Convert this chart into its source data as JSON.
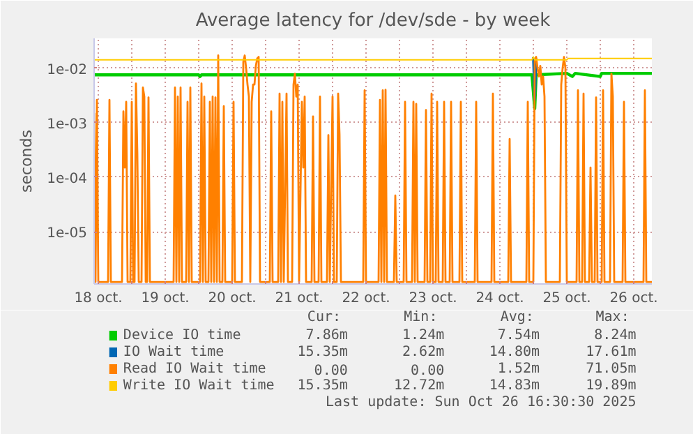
{
  "chart_data": {
    "type": "line",
    "title": "Average latency for /dev/sde - by week",
    "ylabel": "seconds",
    "log": "y",
    "grid": true,
    "legend": "bottom",
    "xlim": [
      "2025-10-18T10:30",
      "2025-10-26T18:30"
    ],
    "ylim": [
      1.1e-06,
      0.035
    ],
    "xticks": [
      {
        "value": "2025-10-18T12:00",
        "label": "18 oct."
      },
      {
        "value": "2025-10-19T00:00",
        "label": null
      },
      {
        "value": "2025-10-19T12:00",
        "label": "19 oct."
      },
      {
        "value": "2025-10-20T00:00",
        "label": null
      },
      {
        "value": "2025-10-20T12:00",
        "label": "20 oct."
      },
      {
        "value": "2025-10-21T00:00",
        "label": null
      },
      {
        "value": "2025-10-21T12:00",
        "label": "21 oct."
      },
      {
        "value": "2025-10-22T00:00",
        "label": null
      },
      {
        "value": "2025-10-22T12:00",
        "label": "22 oct."
      },
      {
        "value": "2025-10-23T00:00",
        "label": null
      },
      {
        "value": "2025-10-23T12:00",
        "label": "23 oct."
      },
      {
        "value": "2025-10-24T00:00",
        "label": null
      },
      {
        "value": "2025-10-24T12:00",
        "label": "24 oct."
      },
      {
        "value": "2025-10-25T00:00",
        "label": null
      },
      {
        "value": "2025-10-25T12:00",
        "label": "25 oct."
      },
      {
        "value": "2025-10-26T00:00",
        "label": null
      },
      {
        "value": "2025-10-26T12:00",
        "label": "26 oct."
      }
    ],
    "yticks": [
      {
        "value": 1e-05,
        "label": "1e-05"
      },
      {
        "value": 0.0001,
        "label": "1e-04"
      },
      {
        "value": 0.001,
        "label": "1e-03"
      },
      {
        "value": 0.01,
        "label": "1e-02"
      }
    ],
    "series": [
      {
        "name": "Device IO time",
        "color": "#00cc00",
        "x": [
          "2025-10-18T10:30",
          "2025-10-20T00:00",
          "2025-10-20T00:30",
          "2025-10-20T01:00",
          "2025-10-24T23:30",
          "2025-10-25T00:30",
          "2025-10-25T01:00",
          "2025-10-25T12:00",
          "2025-10-25T14:00",
          "2025-10-25T15:00",
          "2025-10-26T00:00",
          "2025-10-26T00:30",
          "2025-10-26T18:30"
        ],
        "values": [
          0.0075,
          0.0075,
          0.007,
          0.0075,
          0.0075,
          0.0018,
          0.0075,
          0.008,
          0.007,
          0.008,
          0.007,
          0.008,
          0.008
        ]
      },
      {
        "name": "IO Wait time",
        "color": "#0066b3",
        "x": [
          "2025-10-24T23:30",
          "2025-10-25T00:00",
          "2025-10-25T00:30",
          "2025-10-25T01:00"
        ],
        "values": [
          0.015,
          0.015,
          0.0026,
          0.015
        ]
      },
      {
        "name": "Read IO Wait time",
        "color": "#ff8000",
        "x": [
          "2025-10-18T10:30",
          "2025-10-18T11:00",
          "2025-10-18T11:30",
          "2025-10-18T12:00",
          "2025-10-18T15:30",
          "2025-10-18T16:00",
          "2025-10-18T16:30",
          "2025-10-18T20:30",
          "2025-10-18T21:00",
          "2025-10-18T21:30",
          "2025-10-18T22:00",
          "2025-10-18T22:30",
          "2025-10-18T23:30",
          "2025-10-19T00:00",
          "2025-10-19T00:30",
          "2025-10-19T01:00",
          "2025-10-19T01:30",
          "2025-10-19T02:00",
          "2025-10-19T02:30",
          "2025-10-19T03:30",
          "2025-10-19T04:00",
          "2025-10-19T04:30",
          "2025-10-19T05:00",
          "2025-10-19T05:30",
          "2025-10-19T06:00",
          "2025-10-19T06:30",
          "2025-10-19T15:00",
          "2025-10-19T15:30",
          "2025-10-19T16:00",
          "2025-10-19T16:30",
          "2025-10-19T17:00",
          "2025-10-19T17:30",
          "2025-10-19T18:00",
          "2025-10-19T19:30",
          "2025-10-19T20:00",
          "2025-10-19T20:30",
          "2025-10-19T21:00",
          "2025-10-19T21:30",
          "2025-10-20T00:30",
          "2025-10-20T01:00",
          "2025-10-20T01:30",
          "2025-10-20T02:00",
          "2025-10-20T02:30",
          "2025-10-20T03:30",
          "2025-10-20T04:00",
          "2025-10-20T04:30",
          "2025-10-20T05:00",
          "2025-10-20T05:30",
          "2025-10-20T06:00",
          "2025-10-20T06:30",
          "2025-10-20T07:00",
          "2025-10-20T07:30",
          "2025-10-20T08:30",
          "2025-10-20T09:00",
          "2025-10-20T09:30",
          "2025-10-20T12:00",
          "2025-10-20T12:30",
          "2025-10-20T13:00",
          "2025-10-20T15:30",
          "2025-10-20T16:00",
          "2025-10-20T16:30",
          "2025-10-20T17:00",
          "2025-10-20T17:30",
          "2025-10-20T18:00",
          "2025-10-20T18:30",
          "2025-10-20T19:00",
          "2025-10-20T19:30",
          "2025-10-20T20:00",
          "2025-10-20T20:30",
          "2025-10-20T21:00",
          "2025-10-20T21:30",
          "2025-10-20T22:00",
          "2025-10-21T01:30",
          "2025-10-21T02:00",
          "2025-10-21T02:30",
          "2025-10-21T04:30",
          "2025-10-21T05:00",
          "2025-10-21T05:30",
          "2025-10-21T06:00",
          "2025-10-21T06:30",
          "2025-10-21T07:30",
          "2025-10-21T08:00",
          "2025-10-21T09:30",
          "2025-10-21T10:00",
          "2025-10-21T10:30",
          "2025-10-21T11:00",
          "2025-10-21T11:30",
          "2025-10-21T12:00",
          "2025-10-21T13:00",
          "2025-10-21T13:30",
          "2025-10-21T14:00",
          "2025-10-21T14:30",
          "2025-10-21T16:30",
          "2025-10-21T17:00",
          "2025-10-21T17:30",
          "2025-10-21T19:00",
          "2025-10-21T19:30",
          "2025-10-21T20:00",
          "2025-10-21T22:00",
          "2025-10-21T22:30",
          "2025-10-21T23:00",
          "2025-10-22T00:00",
          "2025-10-22T00:30",
          "2025-10-22T01:30",
          "2025-10-22T02:00",
          "2025-10-22T02:30",
          "2025-10-22T03:00",
          "2025-10-22T11:00",
          "2025-10-22T11:30",
          "2025-10-22T12:00",
          "2025-10-22T16:30",
          "2025-10-22T17:00",
          "2025-10-22T17:30",
          "2025-10-22T18:00",
          "2025-10-22T18:30",
          "2025-10-22T19:00",
          "2025-10-22T19:30",
          "2025-10-22T22:00",
          "2025-10-22T22:30",
          "2025-10-22T23:00",
          "2025-10-23T01:30",
          "2025-10-23T02:00",
          "2025-10-23T02:30",
          "2025-10-23T04:30",
          "2025-10-23T05:00",
          "2025-10-23T05:30",
          "2025-10-23T06:00",
          "2025-10-23T06:30",
          "2025-10-23T09:00",
          "2025-10-23T09:30",
          "2025-10-23T10:00",
          "2025-10-23T11:00",
          "2025-10-23T11:30",
          "2025-10-23T12:00",
          "2025-10-23T13:00",
          "2025-10-23T13:30",
          "2025-10-23T14:00",
          "2025-10-23T15:30",
          "2025-10-23T16:00",
          "2025-10-23T16:30",
          "2025-10-23T18:00",
          "2025-10-23T18:30",
          "2025-10-23T19:00",
          "2025-10-23T21:30",
          "2025-10-23T22:00",
          "2025-10-23T22:30",
          "2025-10-24T03:00",
          "2025-10-24T03:30",
          "2025-10-24T04:00",
          "2025-10-24T09:00",
          "2025-10-24T09:30",
          "2025-10-24T10:00",
          "2025-10-24T15:00",
          "2025-10-24T15:30",
          "2025-10-24T16:00",
          "2025-10-24T21:30",
          "2025-10-24T22:00",
          "2025-10-24T22:30",
          "2025-10-25T00:00",
          "2025-10-25T00:30",
          "2025-10-25T01:00",
          "2025-10-25T01:30",
          "2025-10-25T02:00",
          "2025-10-25T02:30",
          "2025-10-25T03:00",
          "2025-10-25T03:30",
          "2025-10-25T04:00",
          "2025-10-25T04:30",
          "2025-10-25T09:30",
          "2025-10-25T10:00",
          "2025-10-25T10:30",
          "2025-10-25T11:00",
          "2025-10-25T11:30",
          "2025-10-25T12:00",
          "2025-10-25T15:30",
          "2025-10-25T16:00",
          "2025-10-25T16:30",
          "2025-10-25T17:30",
          "2025-10-25T18:00",
          "2025-10-25T18:30",
          "2025-10-25T20:00",
          "2025-10-25T20:30",
          "2025-10-25T21:00",
          "2025-10-25T22:00",
          "2025-10-25T22:30",
          "2025-10-25T23:00",
          "2025-10-26T00:30",
          "2025-10-26T01:00",
          "2025-10-26T01:30",
          "2025-10-26T03:30",
          "2025-10-26T04:00",
          "2025-10-26T04:30",
          "2025-10-26T05:00",
          "2025-10-26T08:00",
          "2025-10-26T08:30",
          "2025-10-26T09:00",
          "2025-10-26T15:30",
          "2025-10-26T16:00",
          "2025-10-26T16:30",
          "2025-10-26T18:30"
        ],
        "values": [
          0.0015,
          1.2e-06,
          0.0026,
          1.2e-06,
          1.2e-06,
          0.0026,
          1.2e-06,
          1.2e-06,
          0.0016,
          0.00015,
          0.0024,
          1.2e-06,
          1.2e-06,
          0.0024,
          1.2e-06,
          1.2e-06,
          0.0052,
          0.00027,
          1.2e-06,
          1.2e-06,
          0.0044,
          0.003,
          1.2e-06,
          1.2e-06,
          0.0029,
          1.2e-06,
          1.2e-06,
          0.0044,
          1.2e-06,
          0.003,
          1.2e-06,
          0.0044,
          1.2e-06,
          1.2e-06,
          0.0024,
          1.2e-06,
          0.0044,
          1.2e-06,
          1.2e-06,
          0.0052,
          1.2e-06,
          0.003,
          1.2e-06,
          1.2e-06,
          0.0024,
          1.2e-06,
          0.003,
          1.2e-06,
          0.0029,
          1.2e-06,
          0.017,
          1.2e-06,
          1.2e-06,
          0.002,
          1.2e-06,
          1.2e-06,
          0.0024,
          1.2e-06,
          1.2e-06,
          0.013,
          0.017,
          0.01,
          0.005,
          0.003,
          1.2e-06,
          0.0024,
          0.005,
          0.005,
          0.011,
          0.015,
          0.016,
          1.2e-06,
          1.2e-06,
          0.0016,
          1.2e-06,
          1.2e-06,
          0.0034,
          1.2e-06,
          0.0024,
          1.2e-06,
          0.0034,
          1.2e-06,
          1.2e-06,
          0.005,
          0.0079,
          0.003,
          0.005,
          1.2e-06,
          0.0024,
          0.00015,
          0.003,
          1.2e-06,
          1.2e-06,
          0.0013,
          1.2e-06,
          1.2e-06,
          0.003,
          1.2e-06,
          1.2e-06,
          0.00059,
          1.2e-06,
          0.003,
          1.2e-06,
          1.2e-06,
          0.0034,
          0.0006,
          1.2e-06,
          1.2e-06,
          0.0039,
          1.2e-06,
          1.2e-06,
          0.0026,
          1.2e-06,
          0.0039,
          1.2e-06,
          0.004,
          1.2e-06,
          1.2e-06,
          4.6e-05,
          1.2e-06,
          1.2e-06,
          0.0024,
          1.2e-06,
          1.2e-06,
          0.0024,
          1.2e-06,
          0.0022,
          1.2e-06,
          1.2e-06,
          0.0017,
          1.2e-06,
          1.2e-06,
          0.0034,
          1.2e-06,
          1.2e-06,
          0.0024,
          1.2e-06,
          1.2e-06,
          0.0024,
          1.2e-06,
          1.2e-06,
          0.0024,
          1.2e-06,
          1.2e-06,
          0.0024,
          1.2e-06,
          1.2e-06,
          0.0024,
          1.2e-06,
          1.2e-06,
          0.0034,
          1.2e-06,
          1.2e-06,
          0.0005,
          1.2e-06,
          1.2e-06,
          0.0024,
          1.2e-06,
          1.2e-06,
          0.014,
          0.016,
          0.01,
          0.007,
          0.011,
          0.005,
          0.007,
          0.003,
          1.2e-06,
          1.2e-06,
          0.005,
          0.01,
          0.016,
          0.01,
          1.2e-06,
          1.2e-06,
          0.0039,
          1.2e-06,
          1.2e-06,
          0.0034,
          1.2e-06,
          1.2e-06,
          0.00015,
          1.2e-06,
          1.2e-06,
          0.0029,
          1.2e-06,
          1.2e-06,
          0.0039,
          1.2e-06,
          1.2e-06,
          0.0079,
          0.003,
          1.2e-06,
          1.2e-06,
          0.0024,
          1.2e-06,
          1.2e-06,
          0.0039,
          1.2e-06,
          1.2e-06
        ]
      },
      {
        "name": "Write IO Wait time",
        "color": "#ffcc00",
        "x": [
          "2025-10-18T10:30",
          "2025-10-24T23:30",
          "2025-10-25T00:00",
          "2025-10-25T00:30",
          "2025-10-25T12:00",
          "2025-10-25T12:30",
          "2025-10-26T18:30"
        ],
        "values": [
          0.0142,
          0.0142,
          0.016,
          0.0142,
          0.0142,
          0.015,
          0.015
        ]
      }
    ],
    "annotations": [
      "Cur:",
      "Min:",
      "Avg:",
      "Max:",
      "7.86m",
      "1.24m",
      "7.54m",
      "8.24m",
      "15.35m",
      "2.62m",
      "14.80m",
      "17.61m",
      "0.00",
      "0.00",
      "1.52m",
      "71.05m",
      "15.35m",
      "12.72m",
      "14.83m",
      "19.89m",
      "Last update: Sun Oct 26 16:30:30 2025"
    ]
  }
}
